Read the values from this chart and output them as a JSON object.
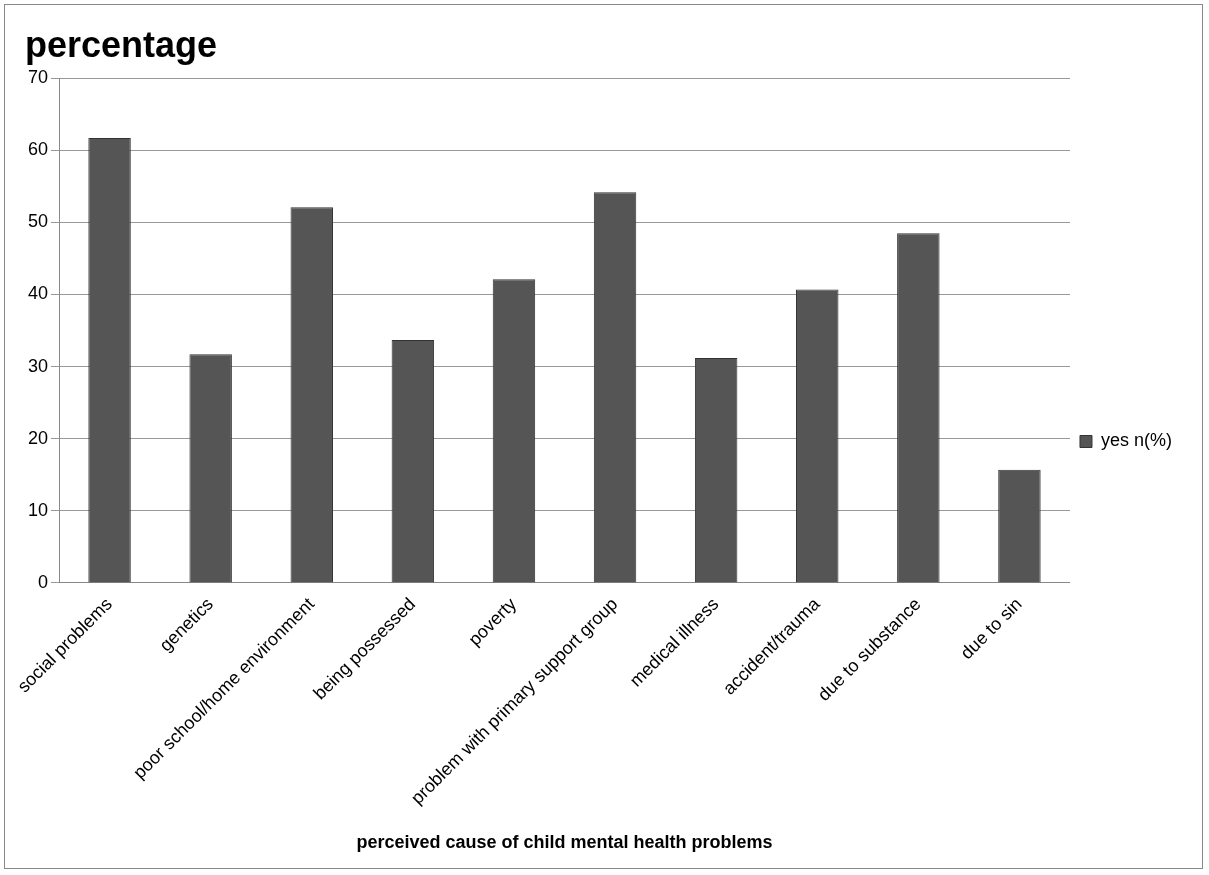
{
  "chart_data": {
    "type": "bar",
    "title": "percentage",
    "xlabel": "perceived cause of child mental health problems",
    "categories": [
      "social problems",
      "genetics",
      "poor school/home environment",
      "being possessed",
      "poverty",
      "problem with primary support group",
      "medical illness",
      "accident/trauma",
      "due to substance",
      "due to sin"
    ],
    "series": [
      {
        "name": "yes n(%)",
        "color": "#555555",
        "values": [
          61.7,
          31.7,
          52.1,
          33.7,
          42.1,
          54.2,
          31.2,
          40.7,
          48.5,
          15.7
        ]
      }
    ],
    "ylim": [
      0,
      70
    ],
    "yticks": [
      0,
      10,
      20,
      30,
      40,
      50,
      60,
      70
    ],
    "grid": "y",
    "legend": "right"
  }
}
